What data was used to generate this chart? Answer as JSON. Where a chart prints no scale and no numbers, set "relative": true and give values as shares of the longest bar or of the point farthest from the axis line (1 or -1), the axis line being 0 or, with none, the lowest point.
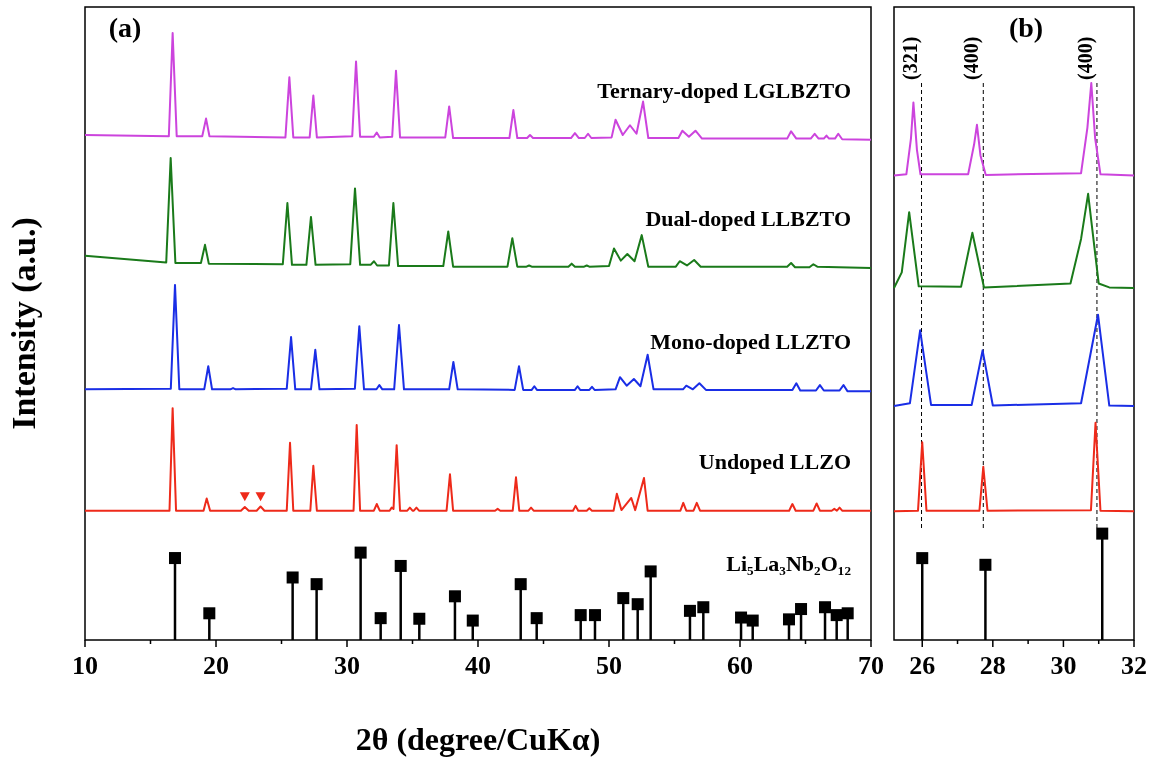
{
  "chart_data": [
    {
      "type": "line",
      "relative": true,
      "ylabel": "Intensity (a.u.)",
      "xlabel": "2θ (degree/CuKα)",
      "annotations": [
        "(a)"
      ],
      "xlim": [
        10,
        70
      ],
      "xticks": [
        10,
        {
          "value": 15,
          "label": null
        },
        20,
        {
          "value": 25,
          "label": null
        },
        30,
        {
          "value": 35,
          "label": null
        },
        40,
        {
          "value": 45,
          "label": null
        },
        50,
        {
          "value": 55,
          "label": null
        },
        60,
        {
          "value": 65,
          "label": null
        },
        70
      ],
      "series": [
        {
          "name": "Ternary-doped LGLBZTO",
          "color": "#cc44dd",
          "x": [
            10,
            16.4,
            16.69,
            17.0,
            18.95,
            19.24,
            19.5,
            25.3,
            25.6,
            25.9,
            27.15,
            27.43,
            27.7,
            30.4,
            30.69,
            31.0,
            32.05,
            32.27,
            32.5,
            33.45,
            33.74,
            34.05,
            37.5,
            37.8,
            38.1,
            42.4,
            42.7,
            43.0,
            43.75,
            43.97,
            44.2,
            47.1,
            47.4,
            47.7,
            48.15,
            48.4,
            48.65,
            50.2,
            50.5,
            51.05,
            51.6,
            52.1,
            52.6,
            53.0,
            55.3,
            55.6,
            56.1,
            56.6,
            57.1,
            63.6,
            63.9,
            64.3,
            65.4,
            65.7,
            66.0,
            66.4,
            66.6,
            66.8,
            67.25,
            67.5,
            67.8,
            70
          ],
          "values": [
            0.832,
            0.83,
            1.0,
            0.83,
            0.83,
            0.859,
            0.83,
            0.828,
            0.927,
            0.828,
            0.828,
            0.897,
            0.828,
            0.83,
            0.953,
            0.829,
            0.829,
            0.836,
            0.828,
            0.829,
            0.938,
            0.828,
            0.828,
            0.879,
            0.827,
            0.827,
            0.873,
            0.827,
            0.827,
            0.832,
            0.827,
            0.827,
            0.835,
            0.827,
            0.827,
            0.834,
            0.827,
            0.828,
            0.857,
            0.832,
            0.848,
            0.834,
            0.887,
            0.827,
            0.827,
            0.839,
            0.829,
            0.839,
            0.826,
            0.826,
            0.838,
            0.826,
            0.826,
            0.834,
            0.826,
            0.826,
            0.831,
            0.826,
            0.826,
            0.834,
            0.825,
            0.824
          ]
        },
        {
          "name": "Dual-doped LLBZTO",
          "color": "#1a7a1a",
          "x": [
            10,
            16.2,
            16.54,
            16.9,
            18.85,
            19.16,
            19.45,
            25.1,
            25.45,
            25.8,
            26.9,
            27.25,
            27.6,
            30.25,
            30.61,
            31.0,
            31.8,
            32.06,
            32.3,
            33.2,
            33.54,
            33.9,
            37.35,
            37.73,
            38.1,
            42.25,
            42.62,
            43.0,
            43.7,
            43.9,
            44.1,
            46.9,
            47.15,
            47.4,
            48.1,
            48.3,
            48.5,
            50.0,
            50.38,
            50.9,
            51.4,
            51.95,
            52.5,
            53.0,
            55.1,
            55.4,
            55.95,
            56.5,
            57.0,
            63.6,
            63.9,
            64.2,
            65.3,
            65.6,
            65.9,
            70
          ],
          "values": [
            0.633,
            0.622,
            0.794,
            0.621,
            0.621,
            0.651,
            0.62,
            0.619,
            0.72,
            0.618,
            0.618,
            0.697,
            0.618,
            0.619,
            0.744,
            0.618,
            0.618,
            0.624,
            0.617,
            0.617,
            0.72,
            0.616,
            0.616,
            0.673,
            0.615,
            0.615,
            0.662,
            0.615,
            0.615,
            0.617,
            0.615,
            0.615,
            0.62,
            0.615,
            0.615,
            0.617,
            0.615,
            0.616,
            0.645,
            0.625,
            0.636,
            0.624,
            0.667,
            0.615,
            0.615,
            0.624,
            0.617,
            0.626,
            0.615,
            0.615,
            0.621,
            0.614,
            0.614,
            0.619,
            0.615,
            0.613
          ]
        },
        {
          "name": "Mono-doped LLZTO",
          "color": "#1a2ee6",
          "x": [
            10,
            16.55,
            16.87,
            17.2,
            19.1,
            19.41,
            19.7,
            21.1,
            21.3,
            21.5,
            25.4,
            25.73,
            26.05,
            27.25,
            27.58,
            27.9,
            30.6,
            30.94,
            31.3,
            32.25,
            32.47,
            32.7,
            33.6,
            33.97,
            34.35,
            37.8,
            38.12,
            38.45,
            42.8,
            43.13,
            43.45,
            44.1,
            44.3,
            44.5,
            47.4,
            47.6,
            47.8,
            48.5,
            48.7,
            48.9,
            50.5,
            50.84,
            51.35,
            51.9,
            52.4,
            52.95,
            53.4,
            55.65,
            55.9,
            56.4,
            56.9,
            57.4,
            64.0,
            64.3,
            64.6,
            65.8,
            66.1,
            66.4,
            67.6,
            67.9,
            68.2,
            70
          ],
          "values": [
            0.413,
            0.414,
            0.585,
            0.413,
            0.413,
            0.451,
            0.413,
            0.413,
            0.415,
            0.413,
            0.414,
            0.499,
            0.413,
            0.413,
            0.478,
            0.413,
            0.414,
            0.517,
            0.413,
            0.413,
            0.42,
            0.413,
            0.413,
            0.519,
            0.413,
            0.413,
            0.458,
            0.413,
            0.412,
            0.451,
            0.412,
            0.412,
            0.418,
            0.412,
            0.412,
            0.418,
            0.412,
            0.412,
            0.417,
            0.412,
            0.413,
            0.433,
            0.419,
            0.43,
            0.418,
            0.47,
            0.413,
            0.413,
            0.419,
            0.413,
            0.423,
            0.412,
            0.412,
            0.423,
            0.411,
            0.411,
            0.42,
            0.411,
            0.411,
            0.42,
            0.41,
            0.41
          ]
        },
        {
          "name": "Undoped LLZO",
          "color": "#ee2a1a",
          "x": [
            10,
            16.45,
            16.69,
            16.95,
            19.05,
            19.29,
            19.55,
            21.9,
            22.2,
            22.5,
            23.1,
            23.4,
            23.7,
            25.4,
            25.65,
            25.9,
            27.2,
            27.43,
            27.7,
            30.5,
            30.74,
            31.0,
            32.05,
            32.27,
            32.5,
            33.25,
            33.41,
            33.55,
            33.79,
            34.05,
            34.6,
            34.8,
            35.0,
            35.1,
            35.3,
            35.5,
            37.6,
            37.86,
            38.1,
            41.3,
            41.5,
            41.7,
            42.65,
            42.9,
            43.15,
            43.85,
            44.05,
            44.25,
            47.25,
            47.45,
            47.65,
            48.3,
            48.5,
            48.7,
            50.35,
            50.6,
            50.95,
            51.7,
            52.0,
            52.67,
            52.95,
            55.45,
            55.67,
            55.9,
            56.45,
            56.7,
            56.95,
            63.75,
            64.0,
            64.25,
            65.6,
            65.85,
            66.1,
            67.0,
            67.2,
            67.4,
            67.6,
            67.8,
            70
          ],
          "values": [
            0.213,
            0.213,
            0.382,
            0.213,
            0.213,
            0.233,
            0.213,
            0.213,
            0.219,
            0.213,
            0.213,
            0.22,
            0.213,
            0.213,
            0.325,
            0.213,
            0.213,
            0.287,
            0.213,
            0.213,
            0.354,
            0.213,
            0.213,
            0.224,
            0.213,
            0.213,
            0.218,
            0.216,
            0.321,
            0.213,
            0.213,
            0.218,
            0.213,
            0.213,
            0.218,
            0.213,
            0.213,
            0.273,
            0.213,
            0.213,
            0.216,
            0.213,
            0.213,
            0.268,
            0.213,
            0.213,
            0.218,
            0.213,
            0.213,
            0.221,
            0.213,
            0.213,
            0.217,
            0.213,
            0.213,
            0.241,
            0.214,
            0.234,
            0.214,
            0.267,
            0.213,
            0.213,
            0.226,
            0.213,
            0.213,
            0.226,
            0.213,
            0.213,
            0.224,
            0.213,
            0.213,
            0.225,
            0.213,
            0.213,
            0.216,
            0.213,
            0.218,
            0.213,
            0.213
          ]
        },
        {
          "type": "scatter",
          "marker": "triangle",
          "color": "#ee2a1a",
          "x": [
            22.2,
            23.4
          ],
          "values": [
            0.237,
            0.237
          ]
        },
        {
          "type": "lollipop",
          "marker": "square",
          "name": "Li₅La₃Nb₂O₁₂",
          "color": "#000000",
          "x": [
            16.87,
            19.49,
            25.85,
            27.68,
            31.04,
            32.57,
            34.1,
            35.52,
            38.24,
            39.6,
            43.26,
            44.48,
            47.84,
            48.93,
            51.09,
            52.19,
            53.18,
            56.18,
            57.2,
            60.08,
            60.97,
            63.74,
            64.66,
            66.49,
            67.38,
            68.22
          ],
          "values": [
            0.135,
            0.044,
            0.103,
            0.092,
            0.144,
            0.036,
            0.122,
            0.035,
            0.072,
            0.032,
            0.092,
            0.036,
            0.041,
            0.041,
            0.069,
            0.059,
            0.113,
            0.048,
            0.054,
            0.037,
            0.032,
            0.034,
            0.051,
            0.054,
            0.041,
            0.044
          ]
        }
      ]
    },
    {
      "type": "line",
      "relative": true,
      "annotations": [
        "(b)",
        {
          "text": "(321)",
          "x": 25.98,
          "y": 1.0
        },
        {
          "text": "(400)",
          "x": 27.73,
          "y": 1.0
        },
        {
          "text": "(400)",
          "x": 30.95,
          "y": 1.0
        }
      ],
      "xlim": [
        25.2,
        32
      ],
      "xticks": [
        26,
        {
          "value": 27,
          "label": null
        },
        28,
        {
          "value": 29,
          "label": null
        },
        30,
        {
          "value": 31,
          "label": null
        },
        32
      ],
      "ref_lines": [
        {
          "axis": "x",
          "value": 25.98,
          "line_style": "dashed",
          "color": "#000000"
        },
        {
          "axis": "x",
          "value": 27.73,
          "line_style": "dashed",
          "color": "#000000"
        },
        {
          "axis": "x",
          "value": 30.95,
          "line_style": "dashed",
          "color": "#000000"
        }
      ],
      "series": [
        {
          "color": "#cc44dd",
          "x": [
            25.2,
            25.55,
            25.68,
            25.75,
            25.85,
            25.95,
            27.3,
            27.47,
            27.55,
            27.65,
            27.8,
            30.5,
            30.68,
            30.79,
            30.9,
            31.05,
            32
          ],
          "values": [
            0.834,
            0.836,
            0.9,
            0.965,
            0.88,
            0.836,
            0.836,
            0.89,
            0.925,
            0.87,
            0.835,
            0.838,
            0.92,
            1.0,
            0.9,
            0.836,
            0.834
          ]
        },
        {
          "color": "#1a7a1a",
          "x": [
            25.2,
            25.42,
            25.63,
            25.9,
            27.1,
            27.42,
            27.75,
            30.2,
            30.5,
            30.7,
            31.0,
            31.3,
            32
          ],
          "values": [
            0.632,
            0.66,
            0.768,
            0.635,
            0.634,
            0.731,
            0.633,
            0.64,
            0.72,
            0.801,
            0.64,
            0.633,
            0.632
          ]
        },
        {
          "color": "#1a2ee6",
          "x": [
            25.2,
            25.65,
            25.94,
            26.25,
            27.4,
            27.71,
            28.0,
            30.5,
            30.98,
            31.3,
            32
          ],
          "values": [
            0.42,
            0.425,
            0.556,
            0.422,
            0.422,
            0.52,
            0.421,
            0.425,
            0.584,
            0.421,
            0.42
          ]
        },
        {
          "color": "#ee2a1a",
          "x": [
            25.2,
            25.88,
            26.0,
            26.12,
            27.62,
            27.73,
            27.85,
            30.78,
            30.91,
            31.05,
            32
          ],
          "values": [
            0.231,
            0.232,
            0.355,
            0.232,
            0.232,
            0.311,
            0.232,
            0.233,
            0.39,
            0.232,
            0.231
          ]
        },
        {
          "type": "lollipop",
          "marker": "square",
          "color": "#000000",
          "x": [
            26.0,
            27.79,
            31.1
          ],
          "values": [
            0.147,
            0.135,
            0.191
          ]
        }
      ]
    }
  ]
}
